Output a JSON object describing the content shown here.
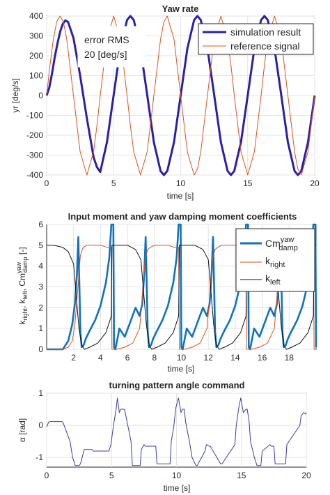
{
  "chart_data": [
    {
      "type": "line",
      "title": "Yaw rate",
      "xlabel": "time [s]",
      "ylabel": "yr [deg/s]",
      "xlim": [
        0,
        20
      ],
      "ylim": [
        -400,
        400
      ],
      "xticks": [
        0,
        5,
        10,
        15,
        20
      ],
      "yticks": [
        -400,
        -300,
        -200,
        -100,
        0,
        100,
        200,
        300,
        400
      ],
      "grid": true,
      "legend": "top-right",
      "annotation": [
        "error RMS",
        "20 [deg/s]"
      ],
      "series": [
        {
          "name": "simulation result",
          "color": "#2b1fa8",
          "x": [
            0,
            0.2,
            0.4,
            0.6,
            0.8,
            1.0,
            1.2,
            1.4,
            1.6,
            2.0,
            2.5,
            3.0,
            3.5,
            3.75,
            4.0,
            4.5,
            5.0,
            5.5,
            6.0,
            6.25,
            6.5,
            7.0,
            7.5,
            8.0,
            8.5,
            8.75,
            9.0,
            9.5,
            10.0,
            10.5,
            11.0,
            11.25,
            11.5,
            12.0,
            12.5,
            13.0,
            13.5,
            13.75,
            14.0,
            14.5,
            15.0,
            15.5,
            16.0,
            16.25,
            16.5,
            17.0,
            17.5,
            18.0,
            18.5,
            18.75,
            19.0,
            19.5,
            20.0
          ],
          "y": [
            0,
            40,
            110,
            190,
            260,
            320,
            360,
            378,
            370,
            290,
            100,
            -115,
            -310,
            -360,
            -385,
            -235,
            4,
            236,
            380,
            400,
            380,
            236,
            4,
            -235,
            -380,
            -400,
            -380,
            -235,
            0,
            236,
            380,
            400,
            380,
            236,
            4,
            -235,
            -380,
            -400,
            -380,
            -235,
            0,
            236,
            380,
            400,
            380,
            236,
            4,
            -235,
            -380,
            -400,
            -380,
            -235,
            0
          ]
        },
        {
          "name": "reference signal",
          "color": "#d9541a",
          "x": [
            0,
            0.25,
            0.5,
            0.75,
            1.0,
            1.25,
            1.5,
            2.0,
            2.5,
            3.0,
            3.5,
            3.75,
            4.0,
            4.5,
            5.0,
            5.5,
            6.0,
            6.25,
            6.5,
            7.0,
            7.5,
            8.0,
            8.5,
            8.75,
            9.0,
            9.5,
            10.0,
            10.5,
            11.0,
            11.25,
            11.5,
            12.0,
            12.5,
            13.0,
            13.5,
            13.75,
            14.0,
            14.5,
            15.0,
            15.5,
            16.0,
            16.25,
            16.5,
            17.0,
            17.5,
            18.0,
            18.5,
            18.75,
            19.0,
            19.5,
            20.0
          ],
          "y": [
            0,
            153,
            283,
            370,
            400,
            370,
            283,
            0,
            -283,
            -400,
            -283,
            -153,
            0,
            283,
            400,
            283,
            0,
            -153,
            -283,
            -400,
            -283,
            0,
            283,
            370,
            400,
            283,
            0,
            -283,
            -400,
            -370,
            -283,
            0,
            283,
            400,
            283,
            153,
            0,
            -283,
            -400,
            -283,
            0,
            153,
            283,
            400,
            283,
            0,
            -283,
            -370,
            -400,
            -283,
            0
          ]
        }
      ]
    },
    {
      "type": "line",
      "title": "Input moment and yaw damping moment coefficients",
      "xlabel": "time [s]",
      "ylabel": "k_right, k_left, Cm^yaw_damp [-]",
      "xlim": [
        0,
        20
      ],
      "ylim": [
        0,
        6
      ],
      "xticks": [
        2,
        4,
        6,
        8,
        10,
        12,
        14,
        16,
        18
      ],
      "yticks": [
        0,
        1,
        2,
        3,
        4,
        5,
        6
      ],
      "grid": true,
      "legend": "top-right",
      "legend_labels": {
        "cm": {
          "base": "Cm",
          "sup": "yaw",
          "sub": "damp"
        },
        "kright": {
          "base": "k",
          "sub": "right"
        },
        "kleft": {
          "base": "k",
          "sub": "left"
        }
      },
      "ylabel_parts": {
        "k": "k",
        "right": "right",
        "sep": ", ",
        "left": "left",
        "cm": "Cm",
        "yaw": "yaw",
        "damp": "damp",
        "unit": " [-]"
      },
      "series": [
        {
          "name": "Cm_damp_yaw",
          "color": "#0e72bd",
          "x": [
            0,
            1.2,
            1.6,
            1.9,
            2.1,
            2.25,
            2.35,
            2.45,
            2.5,
            2.6,
            2.75,
            2.9,
            3.2,
            3.6,
            4.0,
            4.4,
            4.65,
            4.8,
            4.85,
            4.95,
            5.0,
            5.1,
            5.4,
            5.8,
            6.2,
            6.6,
            6.9,
            7.1,
            7.25,
            7.35,
            7.45,
            7.5,
            7.6,
            7.75,
            7.9,
            8.2,
            8.6,
            9.0,
            9.4,
            9.65,
            9.8,
            9.85,
            9.95,
            10.0,
            10.1,
            10.4,
            10.8,
            11.2,
            11.6,
            11.9,
            12.1,
            12.25,
            12.35,
            12.45,
            12.5,
            12.6,
            12.75,
            12.9,
            13.2,
            13.6,
            14.0,
            14.4,
            14.65,
            14.8,
            14.85,
            14.95,
            15.0,
            15.1,
            15.4,
            15.8,
            16.2,
            16.6,
            16.9,
            17.1,
            17.25,
            17.35,
            17.45,
            17.5,
            17.6,
            17.75,
            17.9,
            18.2,
            18.6,
            19.0,
            19.4,
            19.65,
            19.8,
            19.85,
            19.95,
            20.0
          ],
          "y": [
            0,
            0,
            0.4,
            1.2,
            2.2,
            3.6,
            5.4,
            2.5,
            0.9,
            0.1,
            0.2,
            0.5,
            0.9,
            1.4,
            2.1,
            3.2,
            4.4,
            6.0,
            6.0,
            6.0,
            0.1,
            0.0,
            1.0,
            0.6,
            1.3,
            2.0,
            1.6,
            2.2,
            3.7,
            5.4,
            2.5,
            0.9,
            0.1,
            0.2,
            0.5,
            0.9,
            1.4,
            2.1,
            3.2,
            4.4,
            6.0,
            6.0,
            6.0,
            0.1,
            0.0,
            1.0,
            0.6,
            1.3,
            2.0,
            1.6,
            2.2,
            3.7,
            5.4,
            2.5,
            0.9,
            0.1,
            0.2,
            0.5,
            0.9,
            1.4,
            2.1,
            3.2,
            4.4,
            6.0,
            6.0,
            6.0,
            0.1,
            0.0,
            1.0,
            0.6,
            1.3,
            2.0,
            1.6,
            2.2,
            3.7,
            5.4,
            2.5,
            0.9,
            0.1,
            0.2,
            0.5,
            0.9,
            1.4,
            2.1,
            3.2,
            4.4,
            6.0,
            6.0,
            6.0,
            0.1
          ]
        },
        {
          "name": "k_right",
          "color": "#d9541a",
          "x": [
            0,
            1.2,
            1.6,
            1.9,
            2.1,
            2.3,
            2.5,
            2.7,
            3.0,
            3.5,
            4.0,
            4.5,
            4.8,
            4.85,
            5.2,
            5.8,
            6.4,
            6.9,
            7.1,
            7.3,
            7.5,
            7.7,
            8.0,
            8.5,
            9.0,
            9.5,
            9.8,
            9.85,
            10.2,
            10.8,
            11.4,
            11.9,
            12.1,
            12.3,
            12.5,
            12.7,
            13.0,
            13.5,
            14.0,
            14.5,
            14.8,
            14.85,
            15.2,
            15.8,
            16.4,
            16.9,
            17.1,
            17.3,
            17.5,
            17.7,
            18.0,
            18.5,
            19.0,
            19.5,
            19.8,
            19.85,
            20.0
          ],
          "y": [
            0,
            0,
            0.1,
            0.4,
            1.2,
            2.8,
            4.5,
            4.9,
            5.0,
            5.0,
            5.0,
            4.9,
            4.9,
            0.0,
            0.0,
            0.1,
            0.3,
            1.0,
            2.5,
            4.3,
            4.8,
            4.9,
            5.0,
            5.0,
            5.0,
            4.9,
            4.9,
            0.0,
            0.0,
            0.1,
            0.3,
            1.0,
            2.5,
            4.3,
            4.8,
            4.9,
            5.0,
            5.0,
            5.0,
            4.9,
            4.9,
            0.0,
            0.0,
            0.1,
            0.3,
            1.0,
            2.5,
            4.3,
            4.8,
            4.9,
            5.0,
            5.0,
            5.0,
            4.9,
            4.9,
            0.0,
            0.0
          ]
        },
        {
          "name": "k_left",
          "color": "#111111",
          "x": [
            0,
            0.5,
            1.2,
            1.6,
            2.0,
            2.4,
            2.6,
            2.8,
            3.2,
            3.8,
            4.4,
            4.8,
            4.85,
            5.0,
            6.0,
            6.6,
            7.0,
            7.4,
            7.6,
            7.8,
            8.2,
            8.8,
            9.4,
            9.8,
            9.85,
            10.0,
            11.0,
            11.6,
            12.0,
            12.4,
            12.6,
            12.8,
            13.2,
            13.8,
            14.4,
            14.8,
            14.85,
            15.0,
            16.0,
            16.6,
            17.0,
            17.4,
            17.6,
            17.8,
            18.2,
            18.8,
            19.4,
            19.8,
            19.85,
            20.0
          ],
          "y": [
            5.0,
            5.0,
            4.9,
            4.7,
            4.1,
            1.0,
            0.2,
            0.0,
            0.1,
            0.3,
            0.8,
            1.6,
            5.0,
            5.0,
            5.0,
            4.8,
            4.3,
            1.2,
            0.2,
            0.0,
            0.1,
            0.3,
            0.8,
            1.6,
            5.0,
            5.0,
            5.0,
            4.8,
            4.3,
            1.2,
            0.2,
            0.0,
            0.1,
            0.3,
            0.8,
            1.6,
            5.0,
            5.0,
            5.0,
            4.8,
            4.3,
            1.2,
            0.2,
            0.0,
            0.1,
            0.3,
            0.8,
            1.6,
            5.0,
            5.0
          ]
        }
      ]
    },
    {
      "type": "line",
      "title": "turning pattern angle command",
      "xlabel": "time [s]",
      "ylabel": "α [rad]",
      "xlim": [
        0,
        20
      ],
      "ylim": [
        -1.3,
        1.0
      ],
      "xticks": [
        0,
        5,
        10,
        15,
        20
      ],
      "yticks": [
        1,
        0,
        -1
      ],
      "grid": true,
      "series": [
        {
          "name": "alpha",
          "color": "#3a3aa8",
          "x": [
            0,
            0.15,
            0.3,
            1.2,
            1.3,
            1.8,
            2.0,
            2.2,
            2.5,
            2.6,
            2.9,
            3.0,
            3.5,
            3.6,
            4.8,
            4.95,
            5.15,
            5.35,
            5.45,
            5.6,
            5.7,
            6.0,
            6.2,
            6.5,
            6.6,
            7.2,
            7.3,
            7.5,
            7.6,
            8.4,
            8.5,
            9.5,
            9.6,
            9.8,
            9.95,
            10.15,
            10.35,
            10.45,
            10.6,
            10.7,
            11.0,
            11.2,
            11.5,
            11.6,
            12.2,
            12.3,
            12.5,
            12.6,
            13.4,
            13.5,
            14.5,
            14.6,
            14.8,
            14.95,
            15.15,
            15.35,
            15.45,
            15.6,
            15.7,
            16.0,
            16.2,
            16.5,
            16.6,
            17.2,
            17.3,
            17.5,
            17.6,
            18.4,
            18.5,
            19.5,
            19.6,
            19.8,
            19.95,
            20.0
          ],
          "y": [
            -0.05,
            0.1,
            0.12,
            0.12,
            0.05,
            -0.5,
            -1.0,
            -1.25,
            -1.25,
            -1.2,
            -0.75,
            -0.75,
            -0.75,
            -0.8,
            -0.8,
            -0.6,
            0.0,
            0.5,
            0.85,
            0.4,
            0.5,
            0.5,
            0.1,
            -0.5,
            -1.25,
            -1.25,
            -0.75,
            -0.6,
            -0.65,
            -0.65,
            -1.2,
            -1.2,
            -0.5,
            0.0,
            0.55,
            0.85,
            0.4,
            0.5,
            0.5,
            0.1,
            -0.5,
            -1.0,
            -1.25,
            -1.25,
            -0.8,
            -0.6,
            -0.65,
            -0.65,
            -1.2,
            -1.2,
            -0.6,
            0.0,
            0.55,
            0.85,
            0.4,
            0.5,
            0.5,
            0.1,
            -0.5,
            -1.0,
            -1.25,
            -1.25,
            -0.8,
            -0.6,
            -0.65,
            -0.65,
            -1.2,
            -1.2,
            -0.6,
            0.0,
            0.3,
            0.4,
            0.35,
            0.4
          ]
        }
      ]
    }
  ]
}
